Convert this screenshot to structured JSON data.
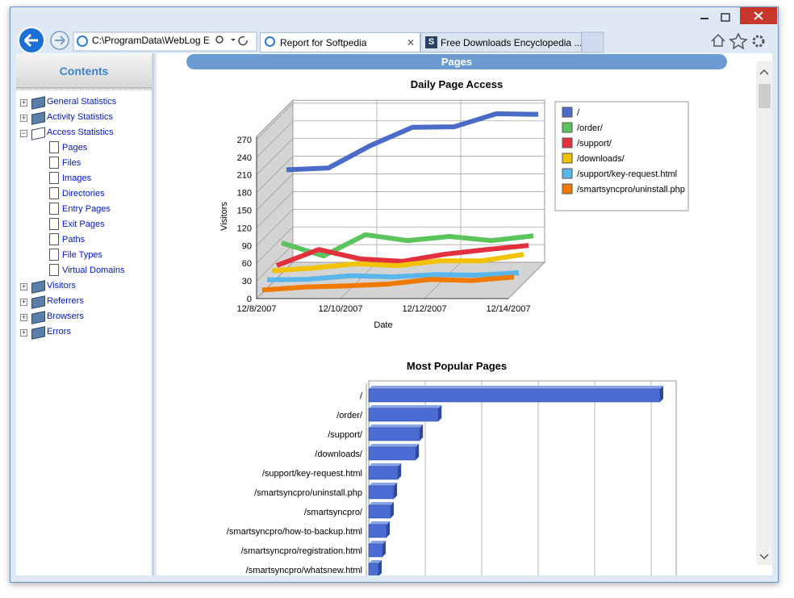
{
  "browser": {
    "address": "C:\\ProgramData\\WebLog E",
    "tabs": [
      "Report for Softpedia",
      "Free Downloads Encyclopedia ..."
    ]
  },
  "sidebar": {
    "title": "Contents",
    "items": [
      {
        "label": "General Statistics"
      },
      {
        "label": "Activity Statistics"
      },
      {
        "label": "Access Statistics",
        "children": [
          "Pages",
          "Files",
          "Images",
          "Directories",
          "Entry Pages",
          "Exit Pages",
          "Paths",
          "File Types",
          "Virtual Domains"
        ]
      },
      {
        "label": "Visitors"
      },
      {
        "label": "Referrers"
      },
      {
        "label": "Browsers"
      },
      {
        "label": "Errors"
      }
    ]
  },
  "main": {
    "header": "Pages"
  },
  "chart_data": [
    {
      "type": "line",
      "title": "Daily Page Access",
      "x_label": "Date",
      "y_label": "Visitors",
      "categories": [
        "12/8/2007",
        null,
        "12/10/2007",
        null,
        "12/12/2007",
        null,
        "12/14/2007"
      ],
      "ylim": [
        0,
        275
      ],
      "yticks": [
        0,
        30,
        60,
        90,
        120,
        150,
        180,
        210,
        240,
        270
      ],
      "grid": true,
      "legend": "right",
      "series": [
        {
          "name": "/",
          "color": "#4a6cc8",
          "values": [
            168,
            171,
            209,
            240,
            241,
            263,
            262
          ]
        },
        {
          "name": "/order/",
          "color": "#5cc45c",
          "values": [
            52,
            30,
            66,
            56,
            63,
            56,
            64
          ]
        },
        {
          "name": "/support/",
          "color": "#e2303c",
          "values": [
            22,
            49,
            33,
            29,
            41,
            49,
            56
          ]
        },
        {
          "name": "/downloads/",
          "color": "#f2c200",
          "values": [
            21,
            26,
            33,
            30,
            38,
            38,
            49
          ]
        },
        {
          "name": "/support/key-request.html",
          "color": "#5ab6ea",
          "values": [
            14,
            15,
            21,
            19,
            23,
            22,
            26
          ]
        },
        {
          "name": "/smartsyncpro/uninstall.php",
          "color": "#f07a00",
          "values": [
            5,
            10,
            12,
            15,
            23,
            21,
            27
          ]
        }
      ]
    },
    {
      "type": "hbar",
      "title": "Most Popular Pages",
      "color": "#4a6cd4",
      "xlim": [
        0,
        1900
      ],
      "grid": true,
      "categories": [
        "/",
        "/order/",
        "/support/",
        "/downloads/",
        "/support/key-request.html",
        "/smartsyncpro/uninstall.php",
        "/smartsyncpro/",
        "/smartsyncpro/how-to-backup.html",
        "/smartsyncpro/registration.html",
        "/smartsyncpro/whatsnew.html"
      ],
      "values": [
        1800,
        430,
        315,
        290,
        180,
        155,
        135,
        110,
        85,
        60
      ]
    }
  ]
}
